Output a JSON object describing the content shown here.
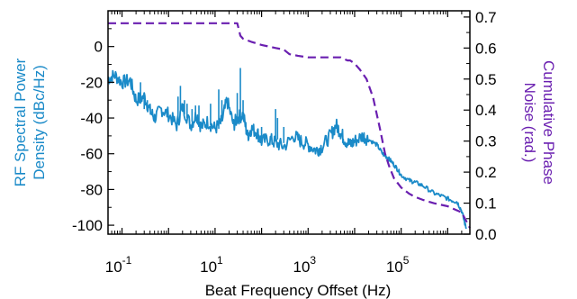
{
  "chart_data": {
    "type": "line",
    "title": "",
    "xlabel": "Beat Frequency Offset (Hz)",
    "x_scale": "log",
    "xlim": [
      0.05,
      3000000
    ],
    "x_ticks": [
      {
        "value": 0.1,
        "base": "10",
        "exp": "-1"
      },
      {
        "value": 10,
        "base": "10",
        "exp": "1"
      },
      {
        "value": 1000,
        "base": "10",
        "exp": "3"
      },
      {
        "value": 100000,
        "base": "10",
        "exp": "5"
      }
    ],
    "y_left": {
      "label_lines": [
        "RF Spectral Power",
        "Density (dBc/Hz)"
      ],
      "color": "#1a8ac8",
      "ylim": [
        -105,
        20
      ],
      "ticks": [
        -100,
        -80,
        -60,
        -40,
        -20,
        0
      ]
    },
    "y_right": {
      "label_lines": [
        "Cumulative Phase",
        "Noise (rad.)"
      ],
      "color": "#6a1fb0",
      "ylim": [
        0,
        0.72
      ],
      "ticks": [
        "0.0",
        "0.1",
        "0.2",
        "0.3",
        "0.4",
        "0.5",
        "0.6",
        "0.7"
      ]
    },
    "series": [
      {
        "axis": "left",
        "color": "#1a8ac8",
        "style": "solid",
        "x": [
          0.05,
          0.07,
          0.1,
          0.15,
          0.2,
          0.3,
          0.4,
          0.5,
          0.7,
          1,
          1.5,
          2,
          3,
          4,
          5,
          7,
          10,
          14,
          18,
          25,
          30,
          40,
          50,
          60,
          80,
          100,
          150,
          200,
          300,
          500,
          700,
          1000,
          1500,
          2000,
          3000,
          4000,
          5000,
          6000,
          8000,
          10000,
          15000,
          20000,
          30000,
          40000,
          50000,
          60000,
          80000,
          100000,
          150000,
          200000,
          300000,
          500000,
          800000,
          1200000,
          1600000,
          2000000,
          2500000
        ],
        "y": [
          -18,
          -16,
          -20,
          -19,
          -30,
          -28,
          -36,
          -40,
          -35,
          -38,
          -44,
          -34,
          -44,
          -38,
          -45,
          -42,
          -46,
          -42,
          -30,
          -44,
          -40,
          -38,
          -50,
          -46,
          -48,
          -53,
          -52,
          -54,
          -56,
          -50,
          -53,
          -55,
          -58,
          -56,
          -50,
          -44,
          -48,
          -52,
          -55,
          -53,
          -50,
          -52,
          -55,
          -60,
          -62,
          -64,
          -68,
          -72,
          -75,
          -76,
          -78,
          -82,
          -84,
          -86,
          -87,
          -92,
          -102
        ]
      },
      {
        "axis": "left",
        "color": "#1a8ac8",
        "style": "spikes",
        "x": [
          0.25,
          0.3,
          0.35,
          1.6,
          1.8,
          2.2,
          2.5,
          3.2,
          3.8,
          4.5,
          8,
          12,
          14,
          30,
          35,
          40,
          100,
          200,
          220,
          300
        ],
        "y_base": [
          -32,
          -35,
          -36,
          -40,
          -36,
          -38,
          -40,
          -42,
          -40,
          -44,
          -44,
          -46,
          -42,
          -42,
          -40,
          -40,
          -52,
          -52,
          -52,
          -54
        ],
        "y_peak": [
          -20,
          -26,
          -30,
          -28,
          -22,
          -30,
          -32,
          -35,
          -33,
          -33,
          -32,
          -24,
          -30,
          -26,
          -12,
          -30,
          -45,
          -35,
          -40,
          -45
        ]
      },
      {
        "axis": "right",
        "color": "#6a1fb0",
        "style": "dashed",
        "x": [
          0.05,
          0.1,
          1,
          10,
          20,
          30,
          35,
          40,
          60,
          100,
          200,
          300,
          330,
          400,
          600,
          1000,
          2000,
          3000,
          5000,
          7000,
          8000,
          10000,
          13000,
          18000,
          25000,
          35000,
          45000,
          55000,
          70000,
          100000,
          150000,
          200000,
          300000,
          500000,
          1000000,
          2000000,
          3000000
        ],
        "y": [
          0.68,
          0.68,
          0.68,
          0.68,
          0.68,
          0.68,
          0.64,
          0.63,
          0.62,
          0.61,
          0.6,
          0.595,
          0.59,
          0.58,
          0.575,
          0.57,
          0.57,
          0.57,
          0.57,
          0.56,
          0.56,
          0.55,
          0.53,
          0.5,
          0.44,
          0.34,
          0.26,
          0.22,
          0.18,
          0.15,
          0.13,
          0.12,
          0.11,
          0.1,
          0.09,
          0.07,
          0.02
        ]
      }
    ]
  }
}
